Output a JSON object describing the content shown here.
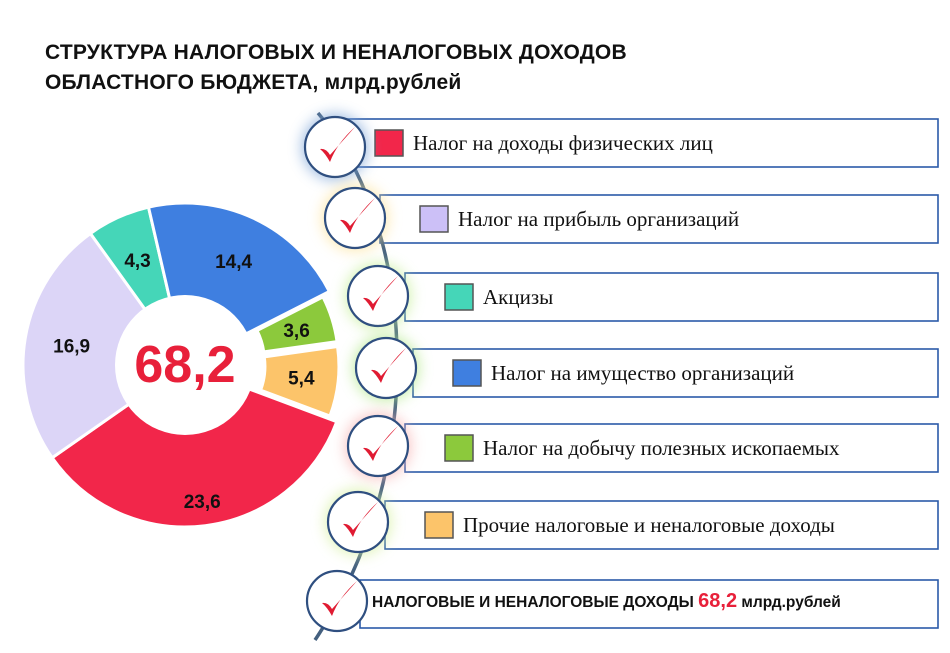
{
  "title_line1": "СТРУКТУРА НАЛОГОВЫХ И НЕНАЛОГОВЫХ ДОХОДОВ",
  "title_line2": "ОБЛАСТНОГО БЮДЖЕТА, млрд.рублей",
  "chart_data": {
    "type": "pie",
    "center_label": "68,2",
    "slices": [
      {
        "label": "23,6",
        "value": 23.6,
        "color": "#f2264a"
      },
      {
        "label": "16,9",
        "value": 16.9,
        "color": "#dcd5f7"
      },
      {
        "label": "4,3",
        "value": 4.3,
        "color": "#45d6b8"
      },
      {
        "label": "14,4",
        "value": 14.4,
        "color": "#3f7fe0"
      },
      {
        "label": "3,6",
        "value": 3.6,
        "color": "#8cc93c"
      },
      {
        "label": "5,4",
        "value": 5.4,
        "color": "#fcc46a"
      }
    ]
  },
  "legend": [
    {
      "text": "Налог на доходы физических лиц",
      "color": "#f2264a",
      "glow": "#7fa6d8"
    },
    {
      "text": "Налог на прибыль организаций",
      "color": "#ccc0f7",
      "glow": "#fde39a"
    },
    {
      "text": "Акцизы",
      "color": "#45d6b8",
      "glow": "#c6ef9a"
    },
    {
      "text": "Налог на имущество организаций",
      "color": "#3f7fe0",
      "glow": "#b4e98c"
    },
    {
      "text": "Налог на добычу полезных ископаемых",
      "color": "#8cc93c",
      "glow": "#f7b3b3"
    },
    {
      "text": "Прочие налоговые и неналоговые доходы",
      "color": "#fcc46a",
      "glow": "#d6f0a0"
    }
  ],
  "total": {
    "label": "НАЛОГОВЫЕ И НЕНАЛОГОВЫЕ  ДОХОДЫ",
    "value": "68,2",
    "unit": "млрд.рублей"
  },
  "colors": {
    "check": "#e01b32",
    "frame": "#2b5aa8",
    "arc": "#44607f",
    "circle_border": "#2f4f80"
  }
}
